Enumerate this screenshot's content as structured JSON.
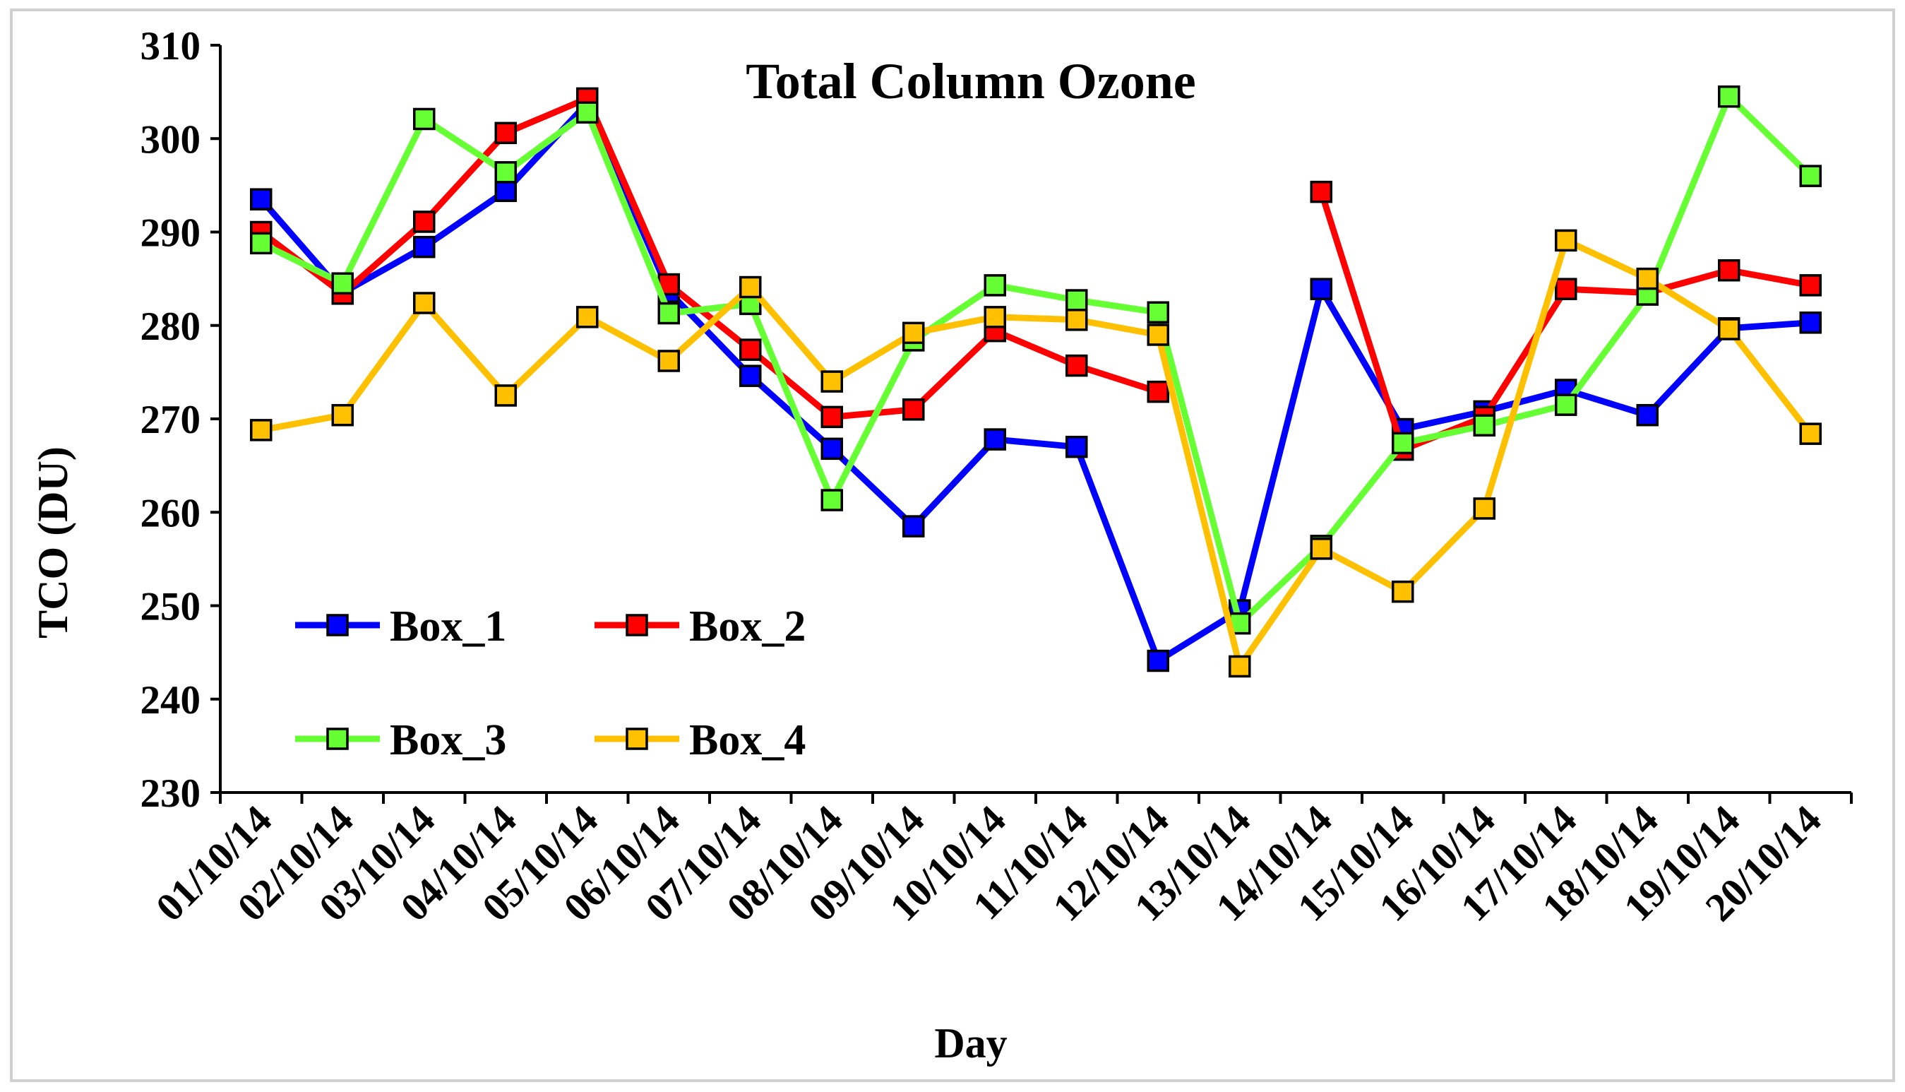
{
  "chart_data": {
    "type": "line",
    "title": "Total Column Ozone",
    "xlabel": "Day",
    "ylabel": "TCO (DU)",
    "ylim": [
      230,
      310
    ],
    "yticks": [
      230,
      240,
      250,
      260,
      270,
      280,
      290,
      300,
      310
    ],
    "grid": false,
    "legend_position": "lower-left",
    "categories": [
      "01/10/14",
      "02/10/14",
      "03/10/14",
      "04/10/14",
      "05/10/14",
      "06/10/14",
      "07/10/14",
      "08/10/14",
      "09/10/14",
      "10/10/14",
      "11/10/14",
      "12/10/14",
      "13/10/14",
      "14/10/14",
      "15/10/14",
      "16/10/14",
      "17/10/14",
      "18/10/14",
      "19/10/14",
      "20/10/14"
    ],
    "series": [
      {
        "name": "Box_1",
        "color": "#0000ff",
        "values": [
          293.5,
          283.5,
          288.4,
          294.4,
          303.8,
          283.6,
          274.6,
          266.8,
          258.5,
          267.8,
          267.0,
          244.1,
          249.5,
          283.9,
          268.9,
          270.8,
          273.1,
          270.4,
          279.7,
          280.3
        ]
      },
      {
        "name": "Box_2",
        "color": "#ff0000",
        "values": [
          290.0,
          283.4,
          291.1,
          300.6,
          304.3,
          284.4,
          277.4,
          270.2,
          271.0,
          279.4,
          275.7,
          272.9,
          null,
          294.3,
          266.7,
          270.2,
          283.9,
          283.5,
          285.9,
          284.3
        ]
      },
      {
        "name": "Box_3",
        "color": "#66ff33",
        "values": [
          288.8,
          284.5,
          302.1,
          296.4,
          302.8,
          281.3,
          282.3,
          261.3,
          278.4,
          284.3,
          282.7,
          281.4,
          248.1,
          256.4,
          267.4,
          269.3,
          271.5,
          283.3,
          304.5,
          296.0
        ]
      },
      {
        "name": "Box_4",
        "color": "#ffc000",
        "values": [
          268.8,
          270.4,
          282.4,
          272.5,
          280.9,
          276.2,
          284.1,
          274.0,
          279.2,
          280.9,
          280.6,
          279.0,
          243.5,
          256.1,
          251.5,
          260.4,
          289.1,
          285.0,
          279.6,
          268.4
        ]
      }
    ]
  }
}
